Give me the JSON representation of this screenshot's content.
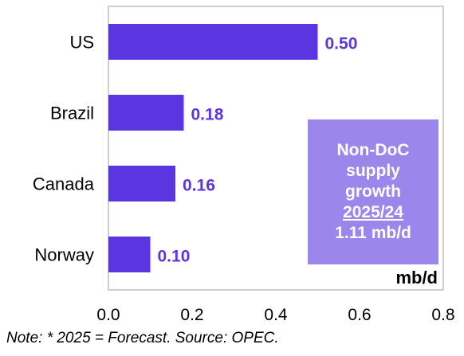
{
  "chart_data": {
    "type": "bar",
    "orientation": "horizontal",
    "categories": [
      "US",
      "Brazil",
      "Canada",
      "Norway"
    ],
    "values": [
      0.5,
      0.18,
      0.16,
      0.1
    ],
    "value_labels": [
      "0.50",
      "0.18",
      "0.16",
      "0.10"
    ],
    "xlim": [
      0,
      0.8
    ],
    "xticks": [
      "0.0",
      "0.2",
      "0.4",
      "0.6",
      "0.8"
    ],
    "unit_label": "mb/d",
    "grid": false,
    "colors": {
      "bar": "#5b35e0",
      "value_label": "#5b35e0",
      "callout_bg": "#9b87ec"
    }
  },
  "callout": {
    "line1": "Non-DoC",
    "line2": "supply",
    "line3": "growth",
    "line4": "2025/24",
    "line5": "1.11 mb/d"
  },
  "note": "Note:  * 2025 = Forecast. Source: OPEC."
}
